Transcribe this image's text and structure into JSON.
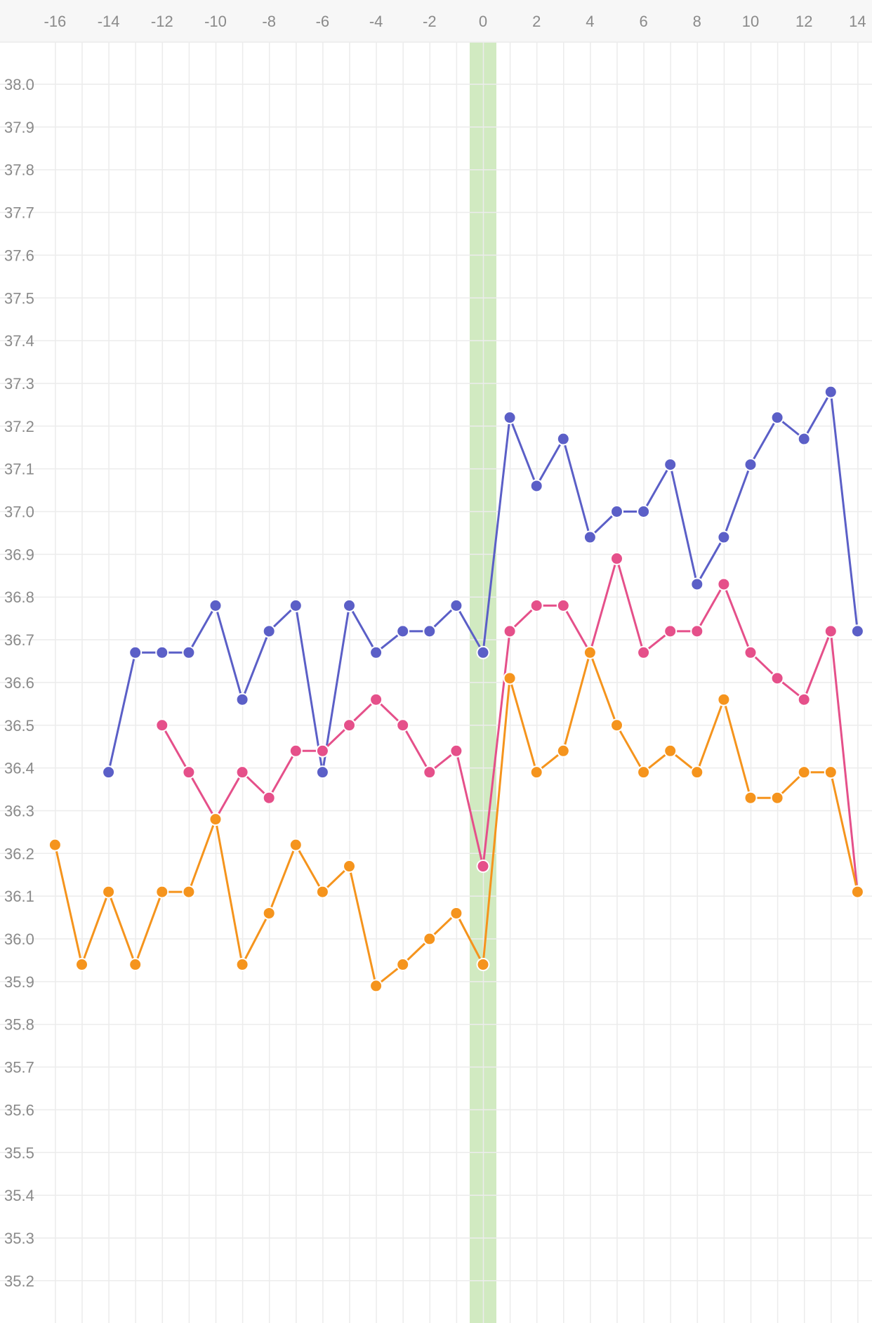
{
  "chart_data": {
    "type": "line",
    "title": "",
    "xlabel": "",
    "ylabel": "",
    "xlim": [
      -17,
      15
    ],
    "ylim": [
      35.1,
      38.1
    ],
    "x_ticks": [
      -16,
      -14,
      -12,
      -10,
      -8,
      -6,
      -4,
      -2,
      0,
      2,
      4,
      6,
      8,
      10,
      12,
      14
    ],
    "y_ticks": [
      35.2,
      35.3,
      35.4,
      35.5,
      35.6,
      35.7,
      35.8,
      35.9,
      36.0,
      36.1,
      36.2,
      36.3,
      36.4,
      36.5,
      36.6,
      36.7,
      36.8,
      36.9,
      37.0,
      37.1,
      37.2,
      37.3,
      37.4,
      37.5,
      37.6,
      37.7,
      37.8,
      37.9,
      38.0
    ],
    "y_tick_labels": [
      "35.2",
      "35.3",
      "35.4",
      "35.5",
      "35.6",
      "35.7",
      "35.8",
      "35.9",
      "36.0",
      "36.1",
      "36.2",
      "36.3",
      "36.4",
      "36.5",
      "36.6",
      "36.7",
      "36.8",
      "36.9",
      "37.0",
      "37.1",
      "37.2",
      "37.3",
      "37.4",
      "37.5",
      "37.6",
      "37.7",
      "37.8",
      "37.9",
      "38.0"
    ],
    "highlight_x": 0,
    "grid": true,
    "colors": {
      "highlight": "#d1eac1",
      "grid": "#ececec",
      "header_bg": "#f7f7f7",
      "tick_text": "#8a8a8a"
    },
    "series": [
      {
        "color": "#5b5fc7",
        "points": [
          [
            -14,
            36.39
          ],
          [
            -13,
            36.67
          ],
          [
            -12,
            36.67
          ],
          [
            -11,
            36.67
          ],
          [
            -10,
            36.78
          ],
          [
            -9,
            36.56
          ],
          [
            -8,
            36.72
          ],
          [
            -7,
            36.78
          ],
          [
            -6,
            36.39
          ],
          [
            -5,
            36.78
          ],
          [
            -4,
            36.67
          ],
          [
            -3,
            36.72
          ],
          [
            -2,
            36.72
          ],
          [
            -1,
            36.78
          ],
          [
            0,
            36.67
          ],
          [
            1,
            37.22
          ],
          [
            2,
            37.06
          ],
          [
            3,
            37.17
          ],
          [
            4,
            36.94
          ],
          [
            5,
            37.0
          ],
          [
            6,
            37.0
          ],
          [
            7,
            37.11
          ],
          [
            8,
            36.83
          ],
          [
            9,
            36.94
          ],
          [
            10,
            37.11
          ],
          [
            11,
            37.22
          ],
          [
            12,
            37.17
          ],
          [
            13,
            37.28
          ],
          [
            14,
            36.72
          ]
        ]
      },
      {
        "color": "#e5508a",
        "points": [
          [
            -12,
            36.5
          ],
          [
            -11,
            36.39
          ],
          [
            -10,
            36.28
          ],
          [
            -9,
            36.39
          ],
          [
            -8,
            36.33
          ],
          [
            -7,
            36.44
          ],
          [
            -6,
            36.44
          ],
          [
            -5,
            36.5
          ],
          [
            -4,
            36.56
          ],
          [
            -3,
            36.5
          ],
          [
            -2,
            36.39
          ],
          [
            -1,
            36.44
          ],
          [
            0,
            36.17
          ],
          [
            1,
            36.72
          ],
          [
            2,
            36.78
          ],
          [
            3,
            36.78
          ],
          [
            4,
            36.67
          ],
          [
            5,
            36.89
          ],
          [
            6,
            36.67
          ],
          [
            7,
            36.72
          ],
          [
            8,
            36.72
          ],
          [
            9,
            36.83
          ],
          [
            10,
            36.67
          ],
          [
            11,
            36.61
          ],
          [
            12,
            36.56
          ],
          [
            13,
            36.72
          ],
          [
            14,
            36.11
          ]
        ]
      },
      {
        "color": "#f5941d",
        "points": [
          [
            -16,
            36.22
          ],
          [
            -15,
            35.94
          ],
          [
            -14,
            36.11
          ],
          [
            -13,
            35.94
          ],
          [
            -12,
            36.11
          ],
          [
            -11,
            36.11
          ],
          [
            -10,
            36.28
          ],
          [
            -9,
            35.94
          ],
          [
            -8,
            36.06
          ],
          [
            -7,
            36.22
          ],
          [
            -6,
            36.11
          ],
          [
            -5,
            36.17
          ],
          [
            -4,
            35.89
          ],
          [
            -3,
            35.94
          ],
          [
            -2,
            36.0
          ],
          [
            -1,
            36.06
          ],
          [
            0,
            35.94
          ],
          [
            1,
            36.61
          ],
          [
            2,
            36.39
          ],
          [
            3,
            36.44
          ],
          [
            4,
            36.67
          ],
          [
            5,
            36.5
          ],
          [
            6,
            36.39
          ],
          [
            7,
            36.44
          ],
          [
            8,
            36.39
          ],
          [
            9,
            36.56
          ],
          [
            10,
            36.33
          ],
          [
            11,
            36.33
          ],
          [
            12,
            36.39
          ],
          [
            13,
            36.39
          ],
          [
            14,
            36.11
          ]
        ]
      }
    ]
  }
}
